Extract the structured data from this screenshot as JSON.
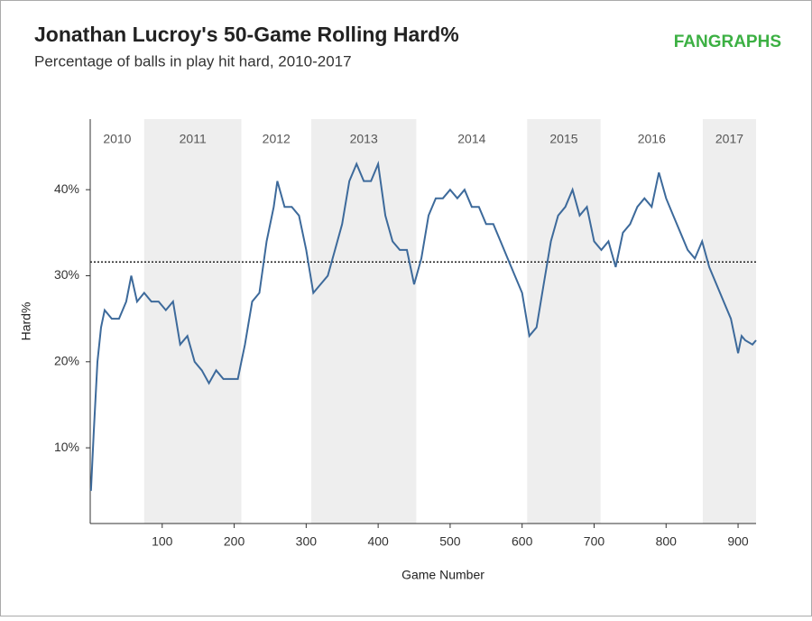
{
  "brand": "FANGRAPHS",
  "chart_data": {
    "type": "line",
    "title": "Jonathan Lucroy's 50-Game Rolling Hard%",
    "subtitle": "Percentage of balls in play hit hard, 2010-2017",
    "x_label": "Game Number",
    "y_label": "Hard%",
    "xlim": [
      0,
      925
    ],
    "ylim": [
      1.2,
      48.2
    ],
    "xticks": [
      100,
      200,
      300,
      400,
      500,
      600,
      700,
      800,
      900
    ],
    "yticks": [
      {
        "value": 10,
        "label": "10%"
      },
      {
        "value": 20,
        "label": "20%"
      },
      {
        "value": 30,
        "label": "30%"
      },
      {
        "value": 40,
        "label": "40%"
      }
    ],
    "reference_line": 31.6,
    "seasons": [
      {
        "label": "2010",
        "start": 0,
        "end": 75,
        "shaded": false
      },
      {
        "label": "2011",
        "start": 75,
        "end": 210,
        "shaded": true
      },
      {
        "label": "2012",
        "start": 210,
        "end": 307,
        "shaded": false
      },
      {
        "label": "2013",
        "start": 307,
        "end": 453,
        "shaded": true
      },
      {
        "label": "2014",
        "start": 453,
        "end": 607,
        "shaded": false
      },
      {
        "label": "2015",
        "start": 607,
        "end": 709,
        "shaded": true
      },
      {
        "label": "2016",
        "start": 709,
        "end": 851,
        "shaded": false
      },
      {
        "label": "2017",
        "start": 851,
        "end": 925,
        "shaded": true
      }
    ],
    "series": [
      {
        "name": "Hard%",
        "color": "#3d6a9b",
        "x": [
          1,
          5,
          10,
          15,
          20,
          30,
          40,
          50,
          57,
          65,
          75,
          85,
          95,
          105,
          115,
          125,
          135,
          145,
          155,
          165,
          175,
          185,
          195,
          205,
          210,
          215,
          225,
          235,
          245,
          255,
          260,
          270,
          280,
          290,
          300,
          310,
          320,
          330,
          340,
          350,
          360,
          370,
          380,
          390,
          400,
          410,
          420,
          430,
          440,
          450,
          460,
          470,
          480,
          490,
          500,
          510,
          520,
          530,
          540,
          550,
          560,
          570,
          580,
          590,
          600,
          610,
          620,
          630,
          640,
          650,
          660,
          670,
          680,
          690,
          700,
          710,
          720,
          730,
          740,
          750,
          760,
          770,
          780,
          790,
          800,
          810,
          820,
          830,
          840,
          850,
          860,
          870,
          880,
          890,
          900,
          905,
          910,
          920,
          925
        ],
        "values": [
          5,
          12,
          20,
          24,
          26,
          25,
          25,
          27,
          30,
          27,
          28,
          27,
          27,
          26,
          27,
          22,
          23,
          20,
          19,
          17.5,
          19,
          18,
          18,
          18,
          20,
          22,
          27,
          28,
          34,
          38,
          41,
          38,
          38,
          37,
          33,
          28,
          29,
          30,
          33,
          36,
          41,
          43,
          41,
          41,
          43,
          37,
          34,
          33,
          33,
          29,
          32,
          37,
          39,
          39,
          40,
          39,
          40,
          38,
          38,
          36,
          36,
          34,
          32,
          30,
          28,
          23,
          24,
          29,
          34,
          37,
          38,
          40,
          37,
          38,
          34,
          33,
          34,
          31,
          35,
          36,
          38,
          39,
          38,
          42,
          39,
          37,
          35,
          33,
          32,
          34,
          31,
          29,
          27,
          25,
          21,
          23,
          22.5,
          22,
          22.5
        ]
      }
    ]
  }
}
